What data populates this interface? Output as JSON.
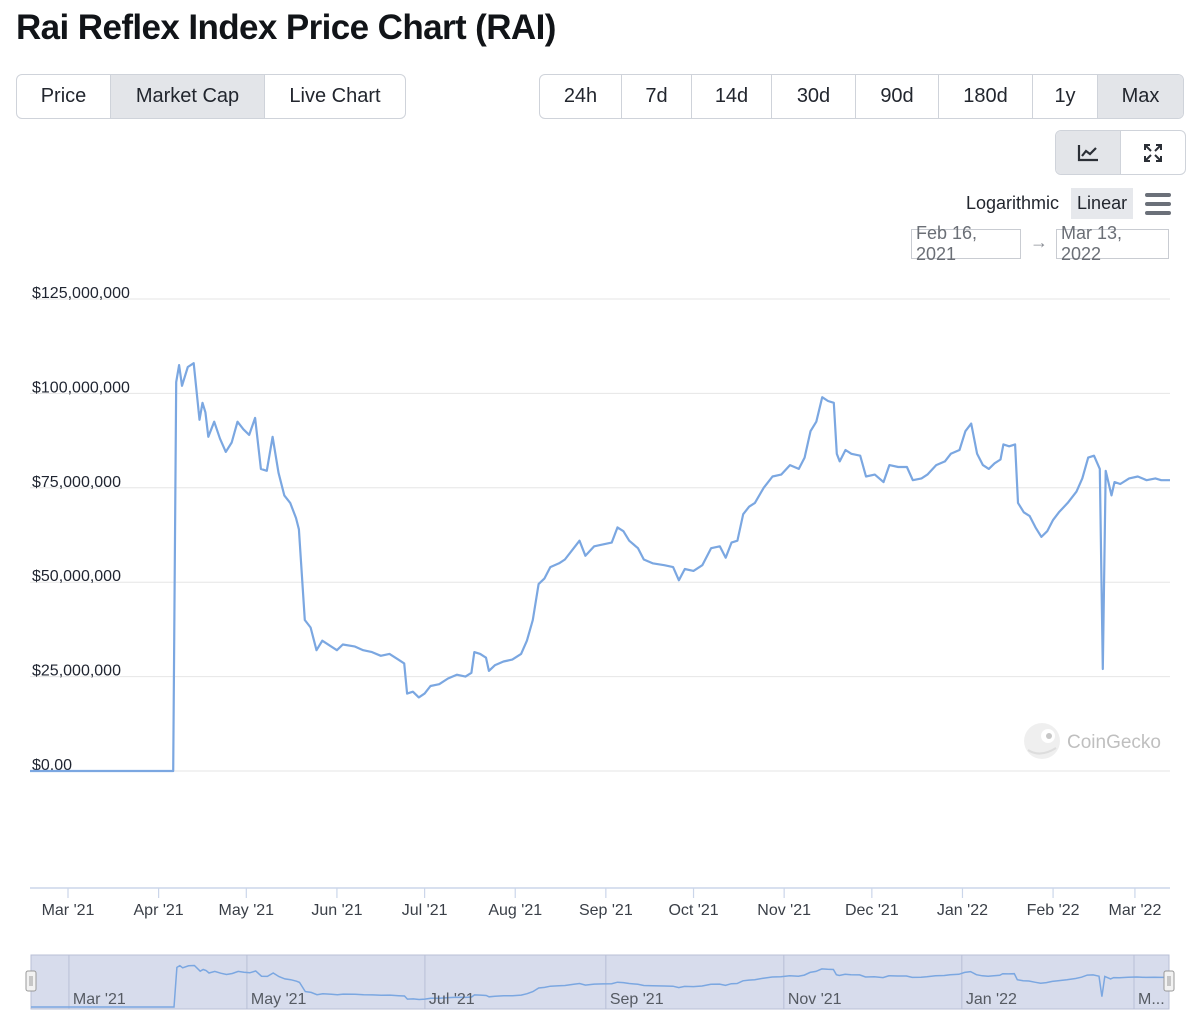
{
  "page": {
    "title": "Rai Reflex Index Price Chart (RAI)"
  },
  "data_tabs": [
    {
      "label": "Price",
      "active": false
    },
    {
      "label": "Market Cap",
      "active": true
    },
    {
      "label": "Live Chart",
      "active": false
    }
  ],
  "range_tabs": [
    {
      "label": "24h",
      "active": false
    },
    {
      "label": "7d",
      "active": false
    },
    {
      "label": "14d",
      "active": false
    },
    {
      "label": "30d",
      "active": false
    },
    {
      "label": "90d",
      "active": false
    },
    {
      "label": "180d",
      "active": false
    },
    {
      "label": "1y",
      "active": false
    },
    {
      "label": "Max",
      "active": true
    }
  ],
  "tools": [
    {
      "icon": "line-chart-icon",
      "active": true
    },
    {
      "icon": "fullscreen-icon",
      "active": false
    }
  ],
  "scale": {
    "logarithmic": "Logarithmic",
    "linear": "Linear",
    "active": "Linear",
    "menu_icon": "hamburger-menu-icon"
  },
  "date_range": {
    "from": "Feb 16, 2021",
    "arrow": "→",
    "to": "Mar 13, 2022"
  },
  "watermark": {
    "text": "CoinGecko",
    "icon": "coingecko-logo-icon"
  },
  "colors": {
    "series": "#7ba7e1",
    "navigator_fill": "#d7dcec",
    "grid": "#e6e6e6"
  },
  "chart_data": {
    "type": "line",
    "title": "",
    "series": [
      {
        "name": "",
        "points": [
          [
            "2021-02-16",
            0
          ],
          [
            "2021-04-06",
            0
          ],
          [
            "2021-04-07",
            103000000
          ],
          [
            "2021-04-08",
            107500000
          ],
          [
            "2021-04-09",
            102000000
          ],
          [
            "2021-04-11",
            107000000
          ],
          [
            "2021-04-13",
            108000000
          ],
          [
            "2021-04-15",
            93000000
          ],
          [
            "2021-04-16",
            97500000
          ],
          [
            "2021-04-17",
            95000000
          ],
          [
            "2021-04-18",
            88500000
          ],
          [
            "2021-04-20",
            92500000
          ],
          [
            "2021-04-22",
            88000000
          ],
          [
            "2021-04-24",
            84500000
          ],
          [
            "2021-04-26",
            87000000
          ],
          [
            "2021-04-28",
            92500000
          ],
          [
            "2021-04-30",
            90500000
          ],
          [
            "2021-05-02",
            89000000
          ],
          [
            "2021-05-04",
            93500000
          ],
          [
            "2021-05-06",
            80000000
          ],
          [
            "2021-05-08",
            79500000
          ],
          [
            "2021-05-10",
            88500000
          ],
          [
            "2021-05-12",
            79000000
          ],
          [
            "2021-05-14",
            73000000
          ],
          [
            "2021-05-16",
            71000000
          ],
          [
            "2021-05-18",
            67000000
          ],
          [
            "2021-05-19",
            64000000
          ],
          [
            "2021-05-21",
            40000000
          ],
          [
            "2021-05-23",
            38000000
          ],
          [
            "2021-05-25",
            32000000
          ],
          [
            "2021-05-27",
            34500000
          ],
          [
            "2021-05-30",
            33000000
          ],
          [
            "2021-06-01",
            32000000
          ],
          [
            "2021-06-03",
            33500000
          ],
          [
            "2021-06-07",
            33000000
          ],
          [
            "2021-06-10",
            32000000
          ],
          [
            "2021-06-13",
            31500000
          ],
          [
            "2021-06-16",
            30500000
          ],
          [
            "2021-06-19",
            31000000
          ],
          [
            "2021-06-22",
            29500000
          ],
          [
            "2021-06-24",
            28500000
          ],
          [
            "2021-06-25",
            20500000
          ],
          [
            "2021-06-27",
            21000000
          ],
          [
            "2021-06-29",
            19500000
          ],
          [
            "2021-07-01",
            20500000
          ],
          [
            "2021-07-03",
            22500000
          ],
          [
            "2021-07-06",
            23000000
          ],
          [
            "2021-07-09",
            24500000
          ],
          [
            "2021-07-12",
            25500000
          ],
          [
            "2021-07-15",
            25000000
          ],
          [
            "2021-07-17",
            26000000
          ],
          [
            "2021-07-18",
            31500000
          ],
          [
            "2021-07-20",
            31000000
          ],
          [
            "2021-07-22",
            30000000
          ],
          [
            "2021-07-23",
            26500000
          ],
          [
            "2021-07-25",
            28000000
          ],
          [
            "2021-07-28",
            29000000
          ],
          [
            "2021-07-31",
            29500000
          ],
          [
            "2021-08-03",
            31000000
          ],
          [
            "2021-08-05",
            34500000
          ],
          [
            "2021-08-07",
            40000000
          ],
          [
            "2021-08-09",
            49500000
          ],
          [
            "2021-08-11",
            51000000
          ],
          [
            "2021-08-13",
            54000000
          ],
          [
            "2021-08-16",
            55000000
          ],
          [
            "2021-08-18",
            56000000
          ],
          [
            "2021-08-21",
            59000000
          ],
          [
            "2021-08-23",
            61000000
          ],
          [
            "2021-08-25",
            57000000
          ],
          [
            "2021-08-28",
            59500000
          ],
          [
            "2021-08-31",
            60000000
          ],
          [
            "2021-09-03",
            60500000
          ],
          [
            "2021-09-05",
            64500000
          ],
          [
            "2021-09-07",
            63500000
          ],
          [
            "2021-09-09",
            61000000
          ],
          [
            "2021-09-12",
            59000000
          ],
          [
            "2021-09-14",
            56000000
          ],
          [
            "2021-09-17",
            55000000
          ],
          [
            "2021-09-21",
            54500000
          ],
          [
            "2021-09-24",
            54000000
          ],
          [
            "2021-09-26",
            50500000
          ],
          [
            "2021-09-28",
            53500000
          ],
          [
            "2021-10-01",
            53000000
          ],
          [
            "2021-10-04",
            54500000
          ],
          [
            "2021-10-07",
            59000000
          ],
          [
            "2021-10-10",
            59500000
          ],
          [
            "2021-10-12",
            56500000
          ],
          [
            "2021-10-14",
            60500000
          ],
          [
            "2021-10-16",
            61000000
          ],
          [
            "2021-10-18",
            68000000
          ],
          [
            "2021-10-20",
            70000000
          ],
          [
            "2021-10-22",
            71000000
          ],
          [
            "2021-10-25",
            75000000
          ],
          [
            "2021-10-28",
            78000000
          ],
          [
            "2021-10-31",
            78500000
          ],
          [
            "2021-11-03",
            81000000
          ],
          [
            "2021-11-06",
            80000000
          ],
          [
            "2021-11-08",
            83000000
          ],
          [
            "2021-11-10",
            90000000
          ],
          [
            "2021-11-12",
            92500000
          ],
          [
            "2021-11-14",
            99000000
          ],
          [
            "2021-11-16",
            98000000
          ],
          [
            "2021-11-18",
            97500000
          ],
          [
            "2021-11-19",
            84000000
          ],
          [
            "2021-11-20",
            82000000
          ],
          [
            "2021-11-22",
            85000000
          ],
          [
            "2021-11-24",
            84000000
          ],
          [
            "2021-11-27",
            83500000
          ],
          [
            "2021-11-29",
            78000000
          ],
          [
            "2021-12-02",
            78500000
          ],
          [
            "2021-12-05",
            76500000
          ],
          [
            "2021-12-07",
            81000000
          ],
          [
            "2021-12-10",
            80500000
          ],
          [
            "2021-12-13",
            80500000
          ],
          [
            "2021-12-15",
            77000000
          ],
          [
            "2021-12-18",
            77500000
          ],
          [
            "2021-12-20",
            78500000
          ],
          [
            "2021-12-23",
            81000000
          ],
          [
            "2021-12-26",
            82000000
          ],
          [
            "2021-12-28",
            84000000
          ],
          [
            "2021-12-31",
            85000000
          ],
          [
            "2022-01-02",
            90000000
          ],
          [
            "2022-01-04",
            92000000
          ],
          [
            "2022-01-06",
            84000000
          ],
          [
            "2022-01-08",
            81000000
          ],
          [
            "2022-01-10",
            80000000
          ],
          [
            "2022-01-12",
            81500000
          ],
          [
            "2022-01-14",
            82500000
          ],
          [
            "2022-01-15",
            86500000
          ],
          [
            "2022-01-17",
            86000000
          ],
          [
            "2022-01-19",
            86500000
          ],
          [
            "2022-01-20",
            71000000
          ],
          [
            "2022-01-22",
            68500000
          ],
          [
            "2022-01-24",
            67500000
          ],
          [
            "2022-01-26",
            64500000
          ],
          [
            "2022-01-28",
            62000000
          ],
          [
            "2022-01-30",
            63500000
          ],
          [
            "2022-02-01",
            66500000
          ],
          [
            "2022-02-03",
            68500000
          ],
          [
            "2022-02-06",
            71000000
          ],
          [
            "2022-02-09",
            74000000
          ],
          [
            "2022-02-11",
            77500000
          ],
          [
            "2022-02-13",
            83000000
          ],
          [
            "2022-02-15",
            83500000
          ],
          [
            "2022-02-17",
            80000000
          ],
          [
            "2022-02-18",
            27000000
          ],
          [
            "2022-02-19",
            79500000
          ],
          [
            "2022-02-21",
            73000000
          ],
          [
            "2022-02-22",
            76500000
          ],
          [
            "2022-02-24",
            76000000
          ],
          [
            "2022-02-27",
            77500000
          ],
          [
            "2022-03-02",
            78000000
          ],
          [
            "2022-03-05",
            77000000
          ],
          [
            "2022-03-08",
            77500000
          ],
          [
            "2022-03-10",
            77000000
          ],
          [
            "2022-03-13",
            77000000
          ]
        ]
      }
    ],
    "y_ticks": [
      "$0.00",
      "$25,000,000",
      "$50,000,000",
      "$75,000,000",
      "$100,000,000",
      "$125,000,000"
    ],
    "ylim": [
      0,
      125000000
    ],
    "x_ticks": [
      "Mar '21",
      "Apr '21",
      "May '21",
      "Jun '21",
      "Jul '21",
      "Aug '21",
      "Sep '21",
      "Oct '21",
      "Nov '21",
      "Dec '21",
      "Jan '22",
      "Feb '22",
      "Mar '22"
    ],
    "x_tick_dates": [
      "2021-03-01",
      "2021-04-01",
      "2021-05-01",
      "2021-06-01",
      "2021-07-01",
      "2021-08-01",
      "2021-09-01",
      "2021-10-01",
      "2021-11-01",
      "2021-12-01",
      "2022-01-01",
      "2022-02-01",
      "2022-03-01"
    ],
    "xlim": [
      "2021-02-16",
      "2022-03-13"
    ],
    "grid": true,
    "legend": "none",
    "navigator": {
      "ticks": [
        "Mar '21",
        "May '21",
        "Jul '21",
        "Sep '21",
        "Nov '21",
        "Jan '22",
        "M..."
      ],
      "tick_dates": [
        "2021-03-01",
        "2021-05-01",
        "2021-07-01",
        "2021-09-01",
        "2021-11-01",
        "2022-01-01",
        "2022-03-01"
      ],
      "selection": "full range"
    }
  }
}
